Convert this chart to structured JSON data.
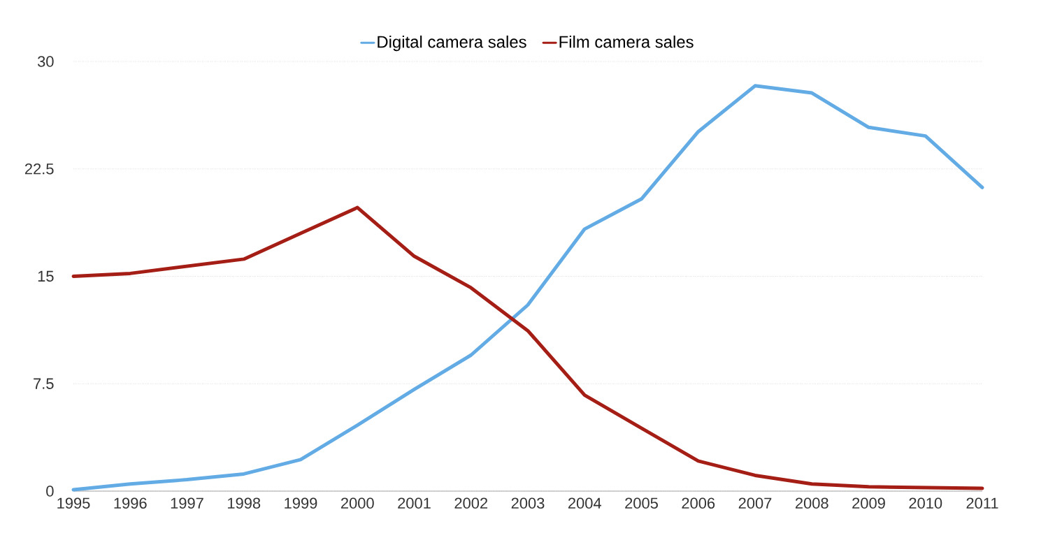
{
  "chart_data": {
    "type": "line",
    "categories": [
      "1995",
      "1996",
      "1997",
      "1998",
      "1999",
      "2000",
      "2001",
      "2002",
      "2003",
      "2004",
      "2005",
      "2006",
      "2007",
      "2008",
      "2009",
      "2010",
      "2011"
    ],
    "series": [
      {
        "name": "Digital camera sales",
        "color": "#62abe4",
        "values": [
          0.1,
          0.5,
          0.8,
          1.2,
          2.2,
          4.6,
          7.1,
          9.5,
          13.0,
          18.3,
          20.4,
          25.1,
          28.3,
          27.8,
          25.4,
          24.8,
          21.2
        ]
      },
      {
        "name": "Film camera sales",
        "color": "#a51e16",
        "values": [
          15.0,
          15.2,
          15.7,
          16.2,
          18.0,
          19.8,
          16.4,
          14.2,
          11.2,
          6.7,
          4.4,
          2.1,
          1.1,
          0.5,
          0.3,
          0.25,
          0.2
        ]
      }
    ],
    "ylim": [
      0,
      30
    ],
    "yticks": [
      0,
      7.5,
      15,
      22.5,
      30
    ],
    "grid": "y",
    "legend": "top",
    "marker": "none",
    "line_style": "solid"
  }
}
